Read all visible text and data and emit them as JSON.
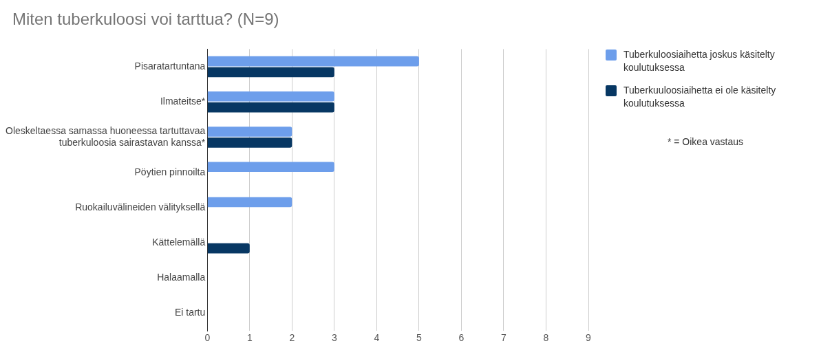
{
  "chart_data": {
    "type": "bar",
    "orientation": "horizontal",
    "title": "Miten tuberkuloosi voi tarttua? (N=9)",
    "categories": [
      "Pisaratartuntana",
      "Ilmateitse*",
      "Oleskeltaessa samassa huoneessa tartuttavaa tuberkuloosia sairastavan kanssa*",
      "Pöytien pinnoilta",
      "Ruokailuvälineiden välityksellä",
      "Kättelemällä",
      "Halaamalla",
      "Ei tartu"
    ],
    "series": [
      {
        "name": "Tuberkuloosiaihetta joskus käsitelty koulutuksessa",
        "color": "#6d9eeb",
        "values": [
          5,
          3,
          2,
          3,
          2,
          0,
          0,
          0
        ]
      },
      {
        "name": "Tuberkuuloosiaihetta ei ole käsitelty koulutuksessa",
        "color": "#073763",
        "values": [
          3,
          3,
          2,
          0,
          0,
          1,
          0,
          0
        ]
      }
    ],
    "xlim": [
      0,
      9
    ],
    "xticks": [
      0,
      1,
      2,
      3,
      4,
      5,
      6,
      7,
      8,
      9
    ],
    "grid": "x",
    "legend": "top right",
    "annotations": [
      "* = Oikea vastaus"
    ]
  }
}
